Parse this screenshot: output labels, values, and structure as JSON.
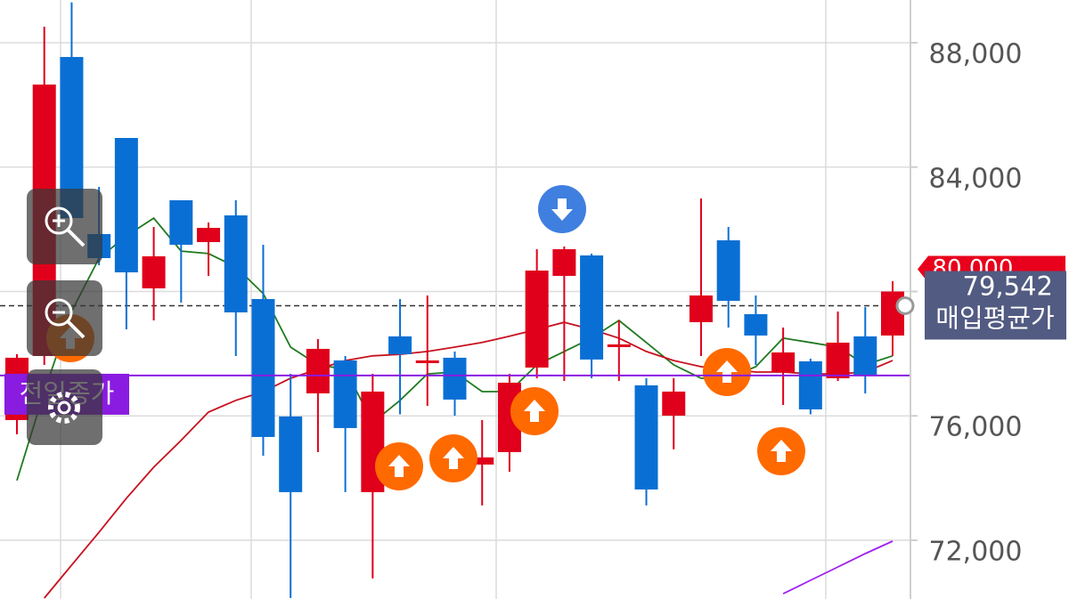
{
  "chart_data": {
    "type": "candlestick",
    "categories": [
      null,
      null,
      null,
      null,
      null,
      null,
      null,
      null,
      null,
      null,
      null,
      null,
      null,
      null,
      null,
      null,
      null,
      null,
      null,
      null,
      null,
      null,
      null,
      null,
      null,
      null,
      null,
      null,
      null,
      null,
      null,
      null,
      null
    ],
    "up_color": "#e0001b",
    "down_color": "#0a6fd4",
    "open": [
      75865,
      77926,
      87542,
      81847,
      84938,
      80101,
      82934,
      81589,
      82448,
      79757,
      75980,
      76724,
      77783,
      73547,
      78556,
      77697,
      77869,
      74434,
      74835,
      77554,
      80502,
      81160,
      78212,
      76981,
      76008,
      79013,
      81646,
      79271,
      77411,
      77754,
      77210,
      78556,
      78584
    ],
    "high": [
      77983,
      88515,
      89300,
      83364,
      84938,
      82076,
      82934,
      82219,
      82934,
      81503,
      77353,
      78470,
      77926,
      77353,
      79757,
      79872,
      78069,
      75865,
      77353,
      81360,
      81446,
      81217,
      79071,
      77210,
      77210,
      82991,
      82076,
      79872,
      78842,
      77840,
      79357,
      79500,
      80330
    ],
    "low": [
      75407,
      77640,
      82219,
      80845,
      78784,
      79071,
      79643,
      80502,
      77926,
      74720,
      70141,
      74835,
      73547,
      70771,
      76050,
      76323,
      76008,
      73118,
      74205,
      77210,
      77124,
      77210,
      77124,
      73118,
      74921,
      77926,
      78842,
      77640,
      76352,
      76050,
      77124,
      76724,
      77926
    ],
    "close": [
      77869,
      86655,
      82362,
      81074,
      80616,
      81131,
      81503,
      82047,
      79328,
      75321,
      73547,
      78155,
      75608,
      76781,
      77983,
      77783,
      76524,
      74663,
      77067,
      80673,
      81360,
      77812,
      78298,
      73633,
      76781,
      79872,
      79700,
      78584,
      78040,
      76209,
      78355,
      77296,
      80000
    ],
    "lines": [
      {
        "color": "#1f7a1f",
        "values": [
          73920,
          76780,
          79360,
          81070,
          81790,
          82360,
          81300,
          81220,
          80790,
          79930,
          78210,
          77640,
          77500,
          75780,
          76500,
          77350,
          77410,
          76780,
          76780,
          77640,
          78070,
          78500,
          79070,
          78360,
          77640,
          77210,
          77210,
          77580,
          78500,
          78360,
          78210,
          77640,
          77930
        ]
      },
      {
        "color": "#c8101e",
        "values": [
          null,
          70140,
          71200,
          72260,
          73350,
          74350,
          75210,
          76120,
          76500,
          76780,
          77210,
          77500,
          77780,
          77930,
          77980,
          78070,
          78210,
          78360,
          78560,
          78780,
          79010,
          78780,
          78500,
          78070,
          77780,
          77580,
          77500,
          77410,
          77410,
          77350,
          77350,
          77410,
          77780
        ]
      },
      {
        "color": "#a020f0",
        "values": [
          null,
          null,
          null,
          null,
          null,
          null,
          null,
          null,
          null,
          null,
          null,
          null,
          null,
          null,
          null,
          null,
          null,
          null,
          null,
          null,
          null,
          null,
          null,
          null,
          null,
          null,
          null,
          null,
          70280,
          70710,
          71140,
          71570,
          71970
        ]
      }
    ],
    "previous_close": {
      "value": 77297,
      "label": "전일종가",
      "color": "#8a1be0"
    },
    "average_price": {
      "value": 79542,
      "value_label": "79,542",
      "label": "매입평균가",
      "color": "#525b82"
    },
    "current_price": {
      "value": 80000,
      "value_label": "80,000",
      "color": "#e8001c"
    },
    "ylim": [
      70110,
      89375
    ],
    "yticks": [
      {
        "value": 72000,
        "label": "72,000"
      },
      {
        "value": 76000,
        "label": "76,000"
      },
      {
        "value": 80000,
        "label": "80,000"
      },
      {
        "value": 84000,
        "label": "84,000"
      },
      {
        "value": 88000,
        "label": "88,000"
      }
    ],
    "grid": true
  }
}
